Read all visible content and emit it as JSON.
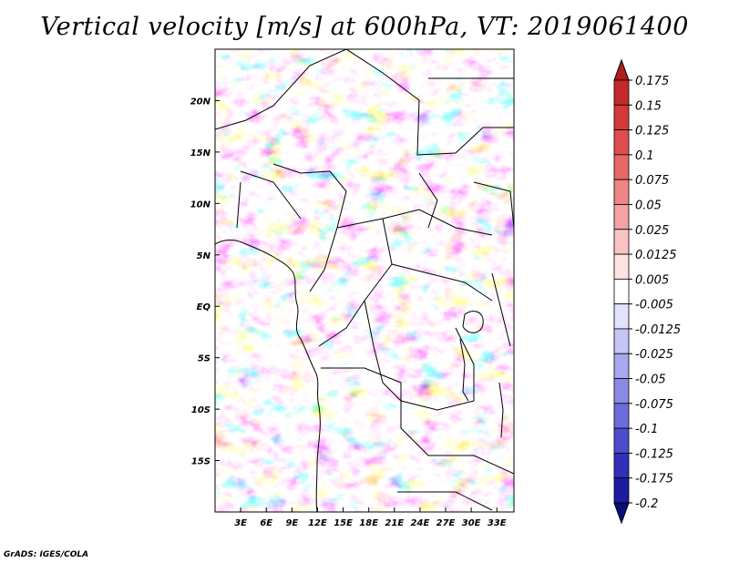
{
  "title": "Vertical velocity [m/s] at 600hPa, VT: 2019061400",
  "credit": "GrADS: IGES/COLA",
  "map": {
    "lon_ticks": [
      "3E",
      "6E",
      "9E",
      "12E",
      "15E",
      "18E",
      "21E",
      "24E",
      "27E",
      "30E",
      "33E"
    ],
    "lat_ticks": [
      "20N",
      "15N",
      "10N",
      "5N",
      "EQ",
      "5S",
      "10S",
      "15S"
    ],
    "lon_range": [
      0,
      35
    ],
    "lat_range": [
      -20,
      25
    ]
  },
  "colorbar": {
    "levels": [
      "0.175",
      "0.15",
      "0.125",
      "0.1",
      "0.075",
      "0.05",
      "0.025",
      "0.0125",
      "0.005",
      "-0.005",
      "-0.0125",
      "-0.025",
      "-0.05",
      "-0.075",
      "-0.1",
      "-0.125",
      "-0.175",
      "-0.2"
    ],
    "colors": [
      "#b01e1e",
      "#c42a2a",
      "#d43a3a",
      "#e04d4d",
      "#e86868",
      "#ef8585",
      "#f4a3a3",
      "#f9c3c3",
      "#fde2e2",
      "#ffffff",
      "#e2e2fb",
      "#c6c6f6",
      "#a8a8ef",
      "#8a8ae6",
      "#6c6cda",
      "#4d4dcc",
      "#3030b8",
      "#1c1ca0",
      "#0c0c7a"
    ]
  },
  "colors": {
    "positive": "#e05050",
    "negative": "#5a5ae0"
  }
}
